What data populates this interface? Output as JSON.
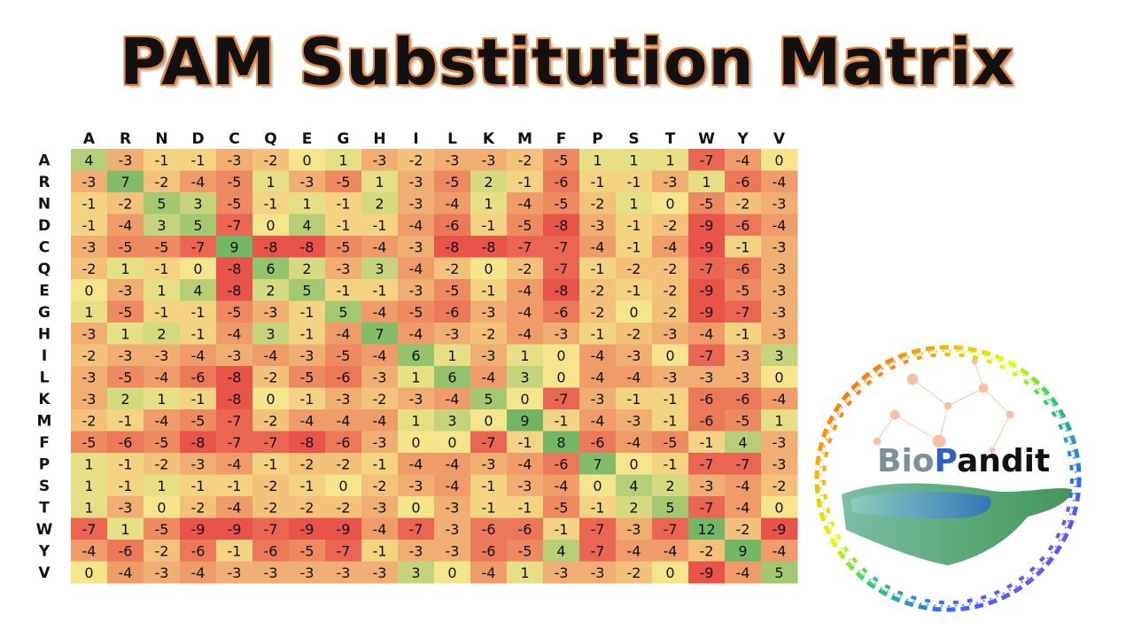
{
  "title": "PAM Substitution Matrix",
  "logo": {
    "text_prefix": "Bio",
    "text_p": "P",
    "text_suffix": "andit"
  },
  "chart_data": {
    "type": "heatmap",
    "title": "PAM Substitution Matrix",
    "columns": [
      "A",
      "R",
      "N",
      "D",
      "C",
      "Q",
      "E",
      "G",
      "H",
      "I",
      "L",
      "K",
      "M",
      "F",
      "P",
      "S",
      "T",
      "W",
      "Y",
      "V"
    ],
    "rows": [
      "A",
      "R",
      "N",
      "D",
      "C",
      "Q",
      "E",
      "G",
      "H",
      "I",
      "L",
      "K",
      "M",
      "F",
      "P",
      "S",
      "T",
      "W",
      "Y",
      "V"
    ],
    "values": [
      [
        4,
        -3,
        -1,
        -1,
        -3,
        -2,
        0,
        1,
        -3,
        -2,
        -3,
        -3,
        -2,
        -5,
        1,
        1,
        1,
        -7,
        -4,
        0
      ],
      [
        -3,
        7,
        -2,
        -4,
        -5,
        1,
        -3,
        -5,
        1,
        -3,
        -5,
        2,
        -1,
        -6,
        -1,
        -1,
        -3,
        1,
        -6,
        -4
      ],
      [
        -1,
        -2,
        5,
        3,
        -5,
        -1,
        1,
        -1,
        2,
        -3,
        -4,
        1,
        -4,
        -5,
        -2,
        1,
        0,
        -5,
        -2,
        -3
      ],
      [
        -1,
        -4,
        3,
        5,
        -7,
        0,
        4,
        -1,
        -1,
        -4,
        -6,
        -1,
        -5,
        -8,
        -3,
        -1,
        -2,
        -9,
        -6,
        -4
      ],
      [
        -3,
        -5,
        -5,
        -7,
        9,
        -8,
        -8,
        -5,
        -4,
        -3,
        -8,
        -8,
        -7,
        -7,
        -4,
        -1,
        -4,
        -9,
        -1,
        -3
      ],
      [
        -2,
        1,
        -1,
        0,
        -8,
        6,
        2,
        -3,
        3,
        -4,
        -2,
        0,
        -2,
        -7,
        -1,
        -2,
        -2,
        -7,
        -6,
        -3
      ],
      [
        0,
        -3,
        1,
        4,
        -8,
        2,
        5,
        -1,
        -1,
        -3,
        -5,
        -1,
        -4,
        -8,
        -2,
        -1,
        -2,
        -9,
        -5,
        -3
      ],
      [
        1,
        -5,
        -1,
        -1,
        -5,
        -3,
        -1,
        5,
        -4,
        -5,
        -6,
        -3,
        -4,
        -6,
        -2,
        0,
        -2,
        -9,
        -7,
        -3
      ],
      [
        -3,
        1,
        2,
        -1,
        -4,
        3,
        -1,
        -4,
        7,
        -4,
        -3,
        -2,
        -4,
        -3,
        -1,
        -2,
        -3,
        -4,
        -1,
        -3
      ],
      [
        -2,
        -3,
        -3,
        -4,
        -3,
        -4,
        -3,
        -5,
        -4,
        6,
        1,
        -3,
        1,
        0,
        -4,
        -3,
        0,
        -7,
        -3,
        3
      ],
      [
        -3,
        -5,
        -4,
        -6,
        -8,
        -2,
        -5,
        -6,
        -3,
        1,
        6,
        -4,
        3,
        0,
        -4,
        -4,
        -3,
        -3,
        -3,
        0
      ],
      [
        -3,
        2,
        1,
        -1,
        -8,
        0,
        -1,
        -3,
        -2,
        -3,
        -4,
        5,
        0,
        -7,
        -3,
        -1,
        -1,
        -6,
        -6,
        -4
      ],
      [
        -2,
        -1,
        -4,
        -5,
        -7,
        -2,
        -4,
        -4,
        -4,
        1,
        3,
        0,
        9,
        -1,
        -4,
        -3,
        -1,
        -6,
        -5,
        1
      ],
      [
        -5,
        -6,
        -5,
        -8,
        -7,
        -7,
        -8,
        -6,
        -3,
        0,
        0,
        -7,
        -1,
        8,
        -6,
        -4,
        -5,
        -1,
        4,
        -3
      ],
      [
        1,
        -1,
        -2,
        -3,
        -4,
        -1,
        -2,
        -2,
        -1,
        -4,
        -4,
        -3,
        -4,
        -6,
        7,
        0,
        -1,
        -7,
        -7,
        -3
      ],
      [
        1,
        -1,
        1,
        -1,
        -1,
        -2,
        -1,
        0,
        -2,
        -3,
        -4,
        -1,
        -3,
        -4,
        0,
        4,
        2,
        -3,
        -4,
        -2
      ],
      [
        1,
        -3,
        0,
        -2,
        -4,
        -2,
        -2,
        -2,
        -3,
        0,
        -3,
        -1,
        -1,
        -5,
        -1,
        2,
        5,
        -7,
        -4,
        0
      ],
      [
        -7,
        1,
        -5,
        -9,
        -9,
        -7,
        -9,
        -9,
        -4,
        -7,
        -3,
        -6,
        -6,
        -1,
        -7,
        -3,
        -7,
        12,
        -2,
        -9
      ],
      [
        -4,
        -6,
        -2,
        -6,
        -1,
        -6,
        -5,
        -7,
        -1,
        -3,
        -3,
        -6,
        -5,
        4,
        -7,
        -4,
        -4,
        -2,
        9,
        -4
      ],
      [
        0,
        -4,
        -3,
        -4,
        -3,
        -3,
        -3,
        -3,
        -3,
        3,
        0,
        -4,
        1,
        -3,
        -3,
        -2,
        0,
        -9,
        -4,
        5
      ]
    ],
    "color_scale": {
      "low": "#e8534a",
      "mid": "#f6e58a",
      "high": "#73b764"
    }
  }
}
